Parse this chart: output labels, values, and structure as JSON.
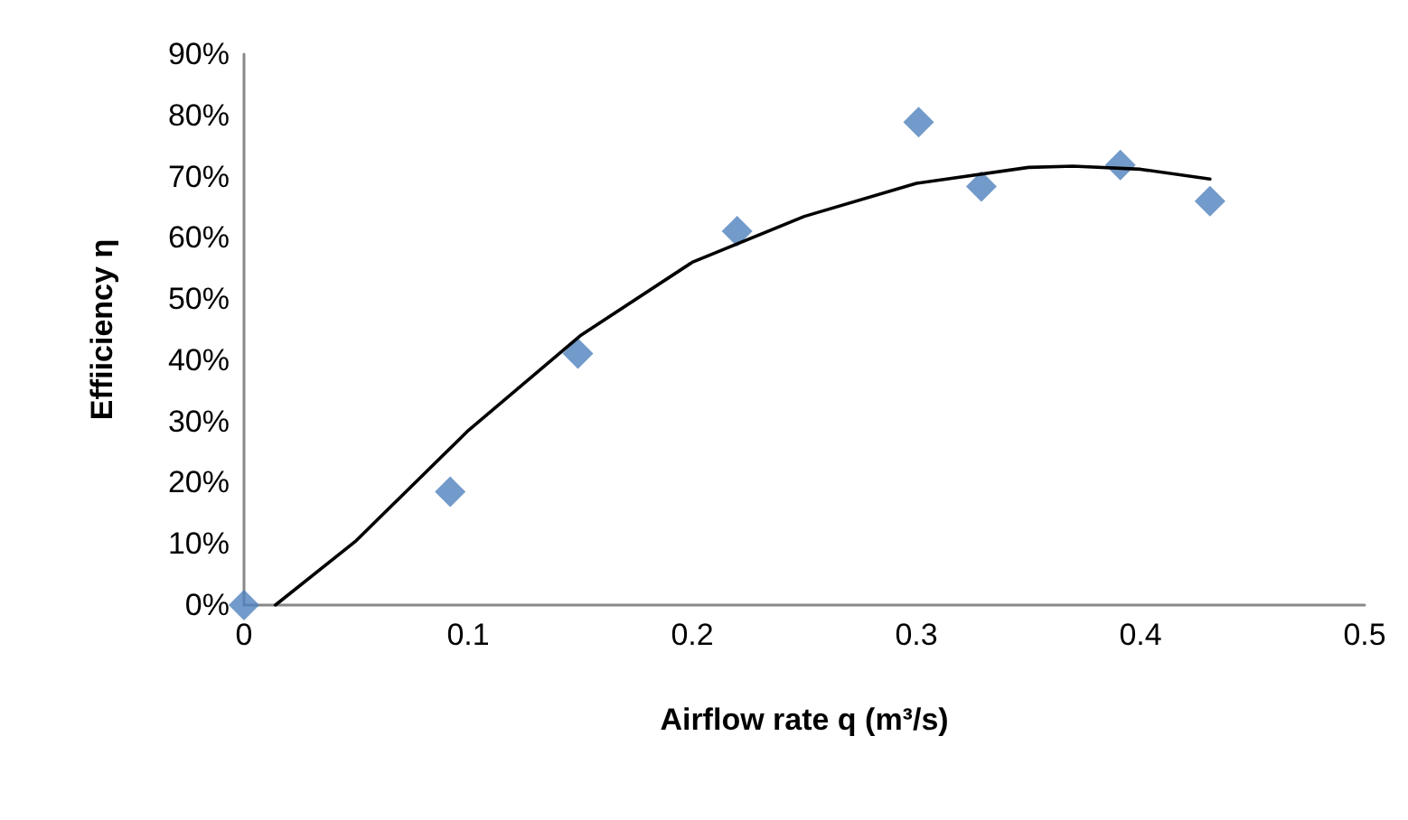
{
  "chart_data": {
    "type": "scatter",
    "xlabel": "Airflow rate q (m³/s)",
    "ylabel": "Effiiciency η",
    "xlim": [
      0,
      0.5
    ],
    "xticks": [
      0,
      0.1,
      0.2,
      0.3,
      0.4,
      0.5
    ],
    "ylim": [
      0,
      90
    ],
    "yticks": [
      {
        "value": 0,
        "label": "0%"
      },
      {
        "value": 10,
        "label": "10%"
      },
      {
        "value": 20,
        "label": "20%"
      },
      {
        "value": 30,
        "label": "30%"
      },
      {
        "value": 40,
        "label": "40%"
      },
      {
        "value": 50,
        "label": "50%"
      },
      {
        "value": 60,
        "label": "60%"
      },
      {
        "value": 70,
        "label": "70%"
      },
      {
        "value": 80,
        "label": "80%"
      },
      {
        "value": 90,
        "label": "90%"
      }
    ],
    "grid": false,
    "series": [
      {
        "color": "#4f81bd",
        "marker": "diamond",
        "x": [
          0,
          0.092,
          0.149,
          0.22,
          0.301,
          0.329,
          0.391,
          0.431
        ],
        "values": [
          0,
          18.5,
          41.1,
          61.1,
          78.9,
          68.4,
          71.9,
          66.0
        ]
      },
      {
        "type": "line",
        "color": "#000000",
        "marker": "none",
        "line_style": "solid",
        "x": [
          0.014,
          0.05,
          0.1,
          0.15,
          0.2,
          0.25,
          0.3,
          0.35,
          0.37,
          0.4,
          0.431
        ],
        "values": [
          0,
          10.5,
          28.5,
          44,
          56,
          63.5,
          68.9,
          71.5,
          71.7,
          71.2,
          69.6
        ]
      }
    ]
  }
}
